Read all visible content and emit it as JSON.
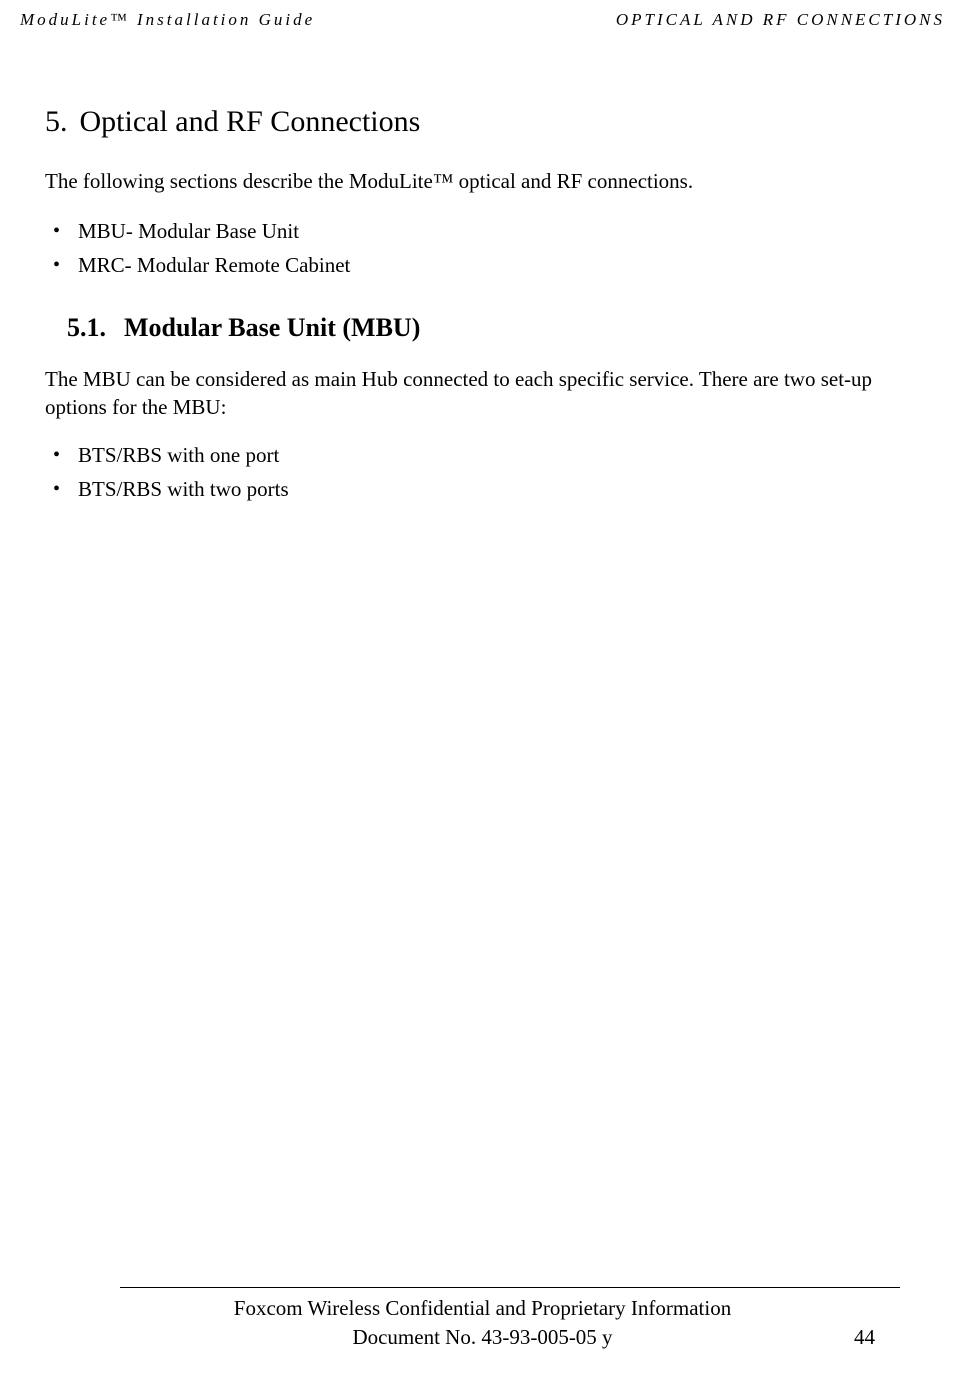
{
  "header": {
    "left": "ModuLite™ Installation Guide",
    "right": "OPTICAL AND RF CONNECTIONS"
  },
  "chapter": {
    "number": "5.",
    "title": "Optical and RF Connections"
  },
  "intro": "The following sections describe the ModuLite™ optical and RF connections.",
  "list1": {
    "item1": "MBU- Modular Base Unit",
    "item2": "MRC- Modular Remote Cabinet"
  },
  "section": {
    "number": "5.1.",
    "title": "Modular Base Unit (MBU)"
  },
  "body1": "The MBU can be considered as main Hub connected to each specific service. There are two set-up options for the MBU:",
  "list2": {
    "item1": "BTS/RBS with one port",
    "item2": "BTS/RBS with two ports"
  },
  "footer": {
    "line1": "Foxcom Wireless Confidential and Proprietary Information",
    "line2": "Document No. 43-93-005-05 y",
    "pageNumber": "44"
  }
}
